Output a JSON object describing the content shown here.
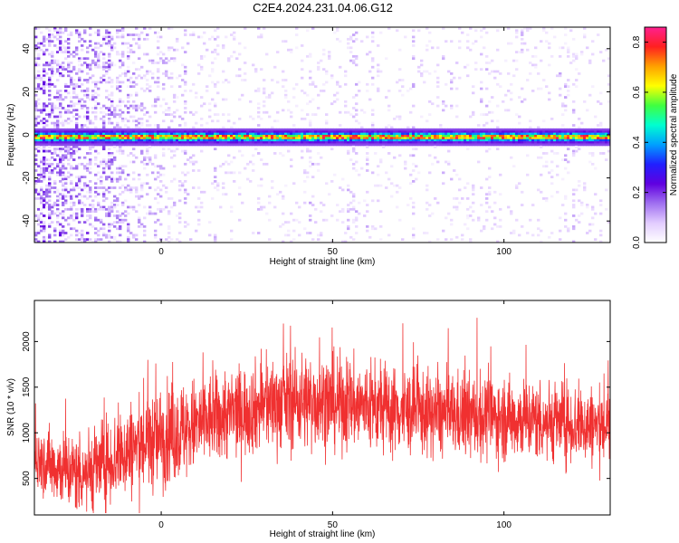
{
  "title": "C2E4.2024.231.04.06.G12",
  "colors": {
    "snr_line": "#f03030",
    "colormap": [
      "#ffffff",
      "#e2ccff",
      "#a070f0",
      "#6000e0",
      "#2020ff",
      "#00a0ff",
      "#00ffd0",
      "#40ff40",
      "#ffff00",
      "#ffa000",
      "#ff2020",
      "#ff2090"
    ]
  },
  "chart_data": [
    {
      "type": "heatmap",
      "title": "",
      "xlabel": "Height of straight line (km)",
      "ylabel": "Frequency (Hz)",
      "xlim": [
        -37,
        131
      ],
      "ylim": [
        -50,
        50
      ],
      "xticks": [
        0,
        50,
        100
      ],
      "yticks": [
        40,
        20,
        0,
        -20,
        -40
      ],
      "colorbar": {
        "label": "Normalized spectral amplitude",
        "range": [
          0.0,
          0.86
        ],
        "ticks": [
          0.0,
          0.2,
          0.4,
          0.6,
          0.8
        ]
      },
      "description_of_data": {
        "dominant_band_center_hz": -1,
        "band_halfwidth_hz": 3,
        "band_peak_amplitude": 0.8,
        "background_amplitude": 0.05
      }
    },
    {
      "type": "line",
      "title": "",
      "xlabel": "Height of straight line (km)",
      "ylabel": "SNR (10 * v/v)",
      "xlim": [
        -37,
        131
      ],
      "ylim": [
        100,
        2450
      ],
      "xticks": [
        0,
        50,
        100
      ],
      "yticks": [
        500,
        1000,
        1500,
        2000
      ],
      "series": [
        {
          "x": [
            -35,
            -30,
            -25,
            -20,
            -15,
            -10,
            -5,
            0,
            5,
            10,
            15,
            20,
            25,
            30,
            35,
            40,
            45,
            50,
            55,
            60,
            65,
            70,
            75,
            80,
            85,
            90,
            95,
            100,
            105,
            110,
            115,
            120,
            125,
            130
          ],
          "values": [
            700,
            620,
            560,
            600,
            700,
            800,
            880,
            950,
            1000,
            1080,
            1150,
            1200,
            1250,
            1300,
            1330,
            1350,
            1350,
            1330,
            1310,
            1290,
            1260,
            1240,
            1220,
            1200,
            1190,
            1180,
            1170,
            1160,
            1150,
            1140,
            1120,
            1100,
            1080,
            1070
          ],
          "spread": [
            350,
            380,
            400,
            420,
            450,
            480,
            500,
            500,
            500,
            480,
            450,
            450,
            450,
            460,
            470,
            480,
            480,
            470,
            460,
            450,
            440,
            430,
            420,
            420,
            420,
            420,
            410,
            410,
            410,
            400,
            400,
            400,
            400,
            400
          ]
        }
      ]
    }
  ]
}
